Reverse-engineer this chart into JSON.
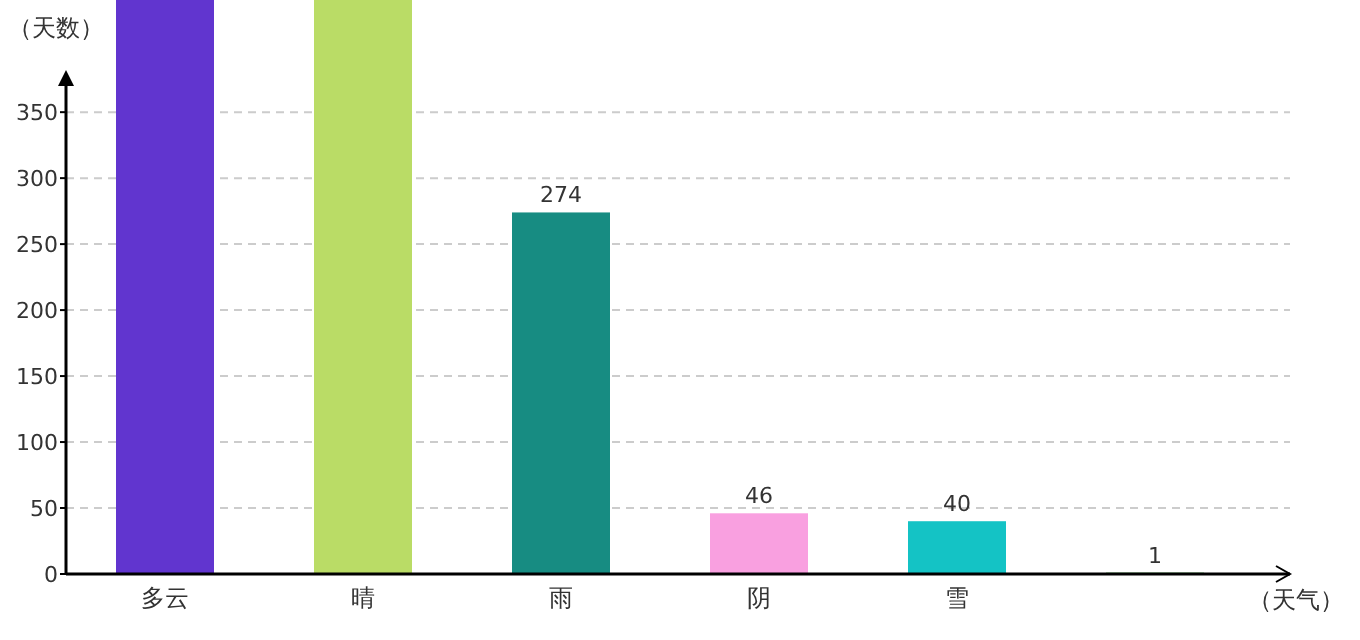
{
  "chart_data": {
    "type": "bar",
    "xlabel": "（天气）",
    "ylabel": "（天数）",
    "categories": [
      "多云",
      "晴",
      "雨",
      "阴",
      "雪",
      null
    ],
    "values": [
      435,
      435,
      274,
      46,
      40,
      1
    ],
    "colors": [
      "#6135cf",
      "#badc66",
      "#178c82",
      "#f9a0e0",
      "#14c3c5",
      "#2e9e2e"
    ],
    "value_labels": [
      null,
      null,
      "274",
      "46",
      "40",
      "1"
    ],
    "ylim": [
      0,
      435
    ],
    "yticks": [
      0,
      50,
      100,
      150,
      200,
      250,
      300,
      350
    ],
    "grid": "y"
  }
}
